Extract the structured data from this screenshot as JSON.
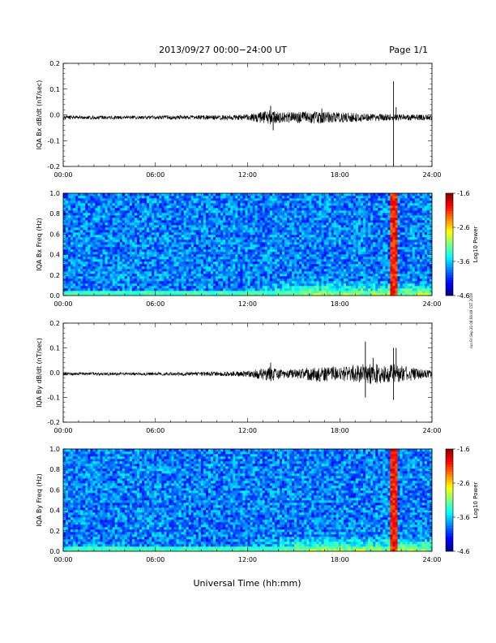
{
  "header": {
    "title": "2013/09/27  00:00−24:00 UT",
    "page": "Page 1/1"
  },
  "footer_label": "Universal Time (hh:mm)",
  "side_note": "run Fri Sep 20 08:06:49 CST 2019",
  "chart_data": [
    {
      "type": "line",
      "ylabel": "IQA Bx dB/dt (nT/sec)",
      "xlim": [
        "00:00",
        "24:00"
      ],
      "ylim": [
        -0.2,
        0.2
      ],
      "x_ticks": [
        "00:00",
        "06:00",
        "12:00",
        "18:00",
        "24:00"
      ],
      "y_ticks": [
        "-0.2",
        "-0.1",
        "0.0",
        "0.1",
        "0.2"
      ],
      "baseline": -0.01,
      "envelope": [
        {
          "x": "00:00",
          "amp": 0.007
        },
        {
          "x": "06:00",
          "amp": 0.007
        },
        {
          "x": "10:00",
          "amp": 0.009
        },
        {
          "x": "12:00",
          "amp": 0.012
        },
        {
          "x": "13:30",
          "amp": 0.03
        },
        {
          "x": "14:00",
          "amp": 0.02
        },
        {
          "x": "16:30",
          "amp": 0.025
        },
        {
          "x": "18:00",
          "amp": 0.02
        },
        {
          "x": "20:00",
          "amp": 0.015
        },
        {
          "x": "24:00",
          "amp": 0.01
        }
      ],
      "spikes": [
        {
          "x": "13:40",
          "y": -0.06
        },
        {
          "x": "13:30",
          "y": 0.035
        },
        {
          "x": "16:50",
          "y": 0.025
        },
        {
          "x": "21:30",
          "y": 0.13
        },
        {
          "x": "21:30",
          "y": -0.2
        },
        {
          "x": "21:40",
          "y": 0.03
        }
      ]
    },
    {
      "type": "heatmap",
      "ylabel": "IQA Bx Freq (Hz)",
      "xlim": [
        "00:00",
        "24:00"
      ],
      "ylim": [
        0,
        1.0
      ],
      "x_ticks": [
        "00:00",
        "06:00",
        "12:00",
        "18:00",
        "24:00"
      ],
      "y_ticks": [
        "0.0",
        "0.2",
        "0.4",
        "0.6",
        "0.8",
        "1.0"
      ],
      "colorbar": {
        "label": "Log10 Power",
        "ticks": [
          "-1.6",
          "-2.6",
          "-3.6",
          "-4.6"
        ],
        "range": [
          -4.6,
          -1.6
        ]
      },
      "features": [
        {
          "desc": "broadband burst",
          "x": "21:30",
          "level": -1.8
        },
        {
          "desc": "low-frequency enhancement",
          "x_range": [
            "12:00",
            "24:00"
          ],
          "freq_max": 0.15,
          "level": -3.0
        }
      ]
    },
    {
      "type": "line",
      "ylabel": "IQA By dB/dt (nT/sec)",
      "xlim": [
        "00:00",
        "24:00"
      ],
      "ylim": [
        -0.2,
        0.2
      ],
      "x_ticks": [
        "00:00",
        "06:00",
        "12:00",
        "18:00",
        "24:00"
      ],
      "y_ticks": [
        "-0.2",
        "-0.1",
        "0.0",
        "0.1",
        "0.2"
      ],
      "baseline": -0.005,
      "envelope": [
        {
          "x": "00:00",
          "amp": 0.006
        },
        {
          "x": "06:00",
          "amp": 0.006
        },
        {
          "x": "10:00",
          "amp": 0.008
        },
        {
          "x": "12:00",
          "amp": 0.012
        },
        {
          "x": "13:30",
          "amp": 0.03
        },
        {
          "x": "14:30",
          "amp": 0.015
        },
        {
          "x": "16:30",
          "amp": 0.03
        },
        {
          "x": "18:00",
          "amp": 0.03
        },
        {
          "x": "19:30",
          "amp": 0.04
        },
        {
          "x": "21:30",
          "amp": 0.04
        },
        {
          "x": "24:00",
          "amp": 0.012
        }
      ],
      "spikes": [
        {
          "x": "19:40",
          "y": 0.125
        },
        {
          "x": "19:40",
          "y": -0.1
        },
        {
          "x": "20:10",
          "y": 0.06
        },
        {
          "x": "21:30",
          "y": 0.1
        },
        {
          "x": "21:30",
          "y": -0.11
        },
        {
          "x": "21:40",
          "y": 0.1
        },
        {
          "x": "13:30",
          "y": 0.04
        }
      ]
    },
    {
      "type": "heatmap",
      "ylabel": "IQA By Freq (Hz)",
      "xlim": [
        "00:00",
        "24:00"
      ],
      "ylim": [
        0,
        1.0
      ],
      "x_ticks": [
        "00:00",
        "06:00",
        "12:00",
        "18:00",
        "24:00"
      ],
      "y_ticks": [
        "0.0",
        "0.2",
        "0.4",
        "0.6",
        "0.8",
        "1.0"
      ],
      "colorbar": {
        "label": "Log10 Power",
        "ticks": [
          "-1.6",
          "-2.6",
          "-3.6",
          "-4.6"
        ],
        "range": [
          -4.6,
          -1.6
        ]
      },
      "features": [
        {
          "desc": "broadband burst",
          "x": "21:30",
          "level": -1.8
        },
        {
          "desc": "low-frequency enhancement",
          "x_range": [
            "12:00",
            "24:00"
          ],
          "freq_max": 0.15,
          "level": -3.0
        }
      ]
    }
  ]
}
